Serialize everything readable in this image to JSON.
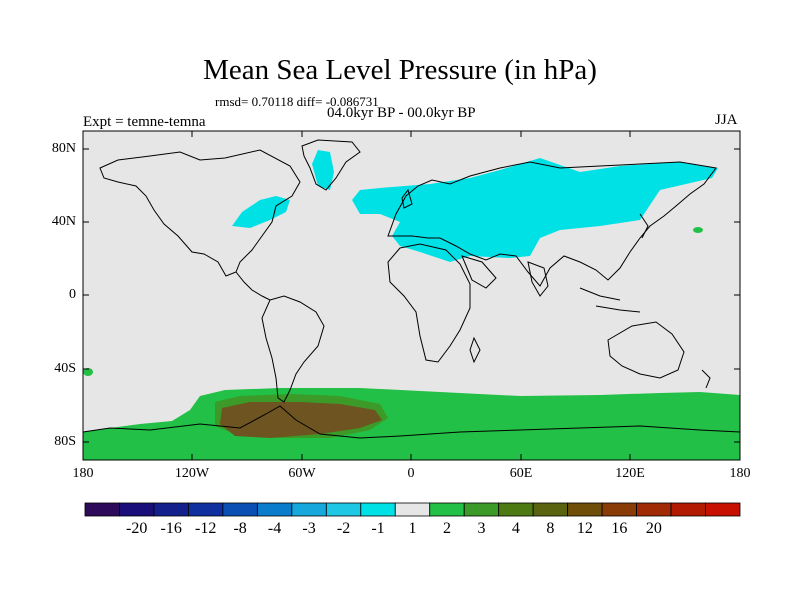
{
  "title": "Mean Sea Level Pressure (in hPa)",
  "stats": "rmsd= 0.70118 diff= -0.086731",
  "period": "04.0kyr BP - 00.0kyr BP",
  "experiment": "Expt = temne-temna",
  "season": "JJA",
  "lat_labels": [
    "80N",
    "40N",
    "0",
    "40S",
    "80S"
  ],
  "lon_labels": [
    "180",
    "120W",
    "60W",
    "0",
    "60E",
    "120E",
    "180"
  ],
  "colorbar": {
    "labels": [
      "-20",
      "-16",
      "-12",
      "-8",
      "-4",
      "-3",
      "-2",
      "-1",
      "1",
      "2",
      "3",
      "4",
      "8",
      "12",
      "16",
      "20"
    ],
    "colors": [
      "#2d0a5a",
      "#1a0f7a",
      "#14208c",
      "#1030a0",
      "#0a4fb4",
      "#0a7ccc",
      "#16a8dc",
      "#1ec8e4",
      "#00e1e6",
      "#e6e6e6",
      "#22c046",
      "#3c9a28",
      "#4e7a14",
      "#5a6410",
      "#6e4e08",
      "#8a3c06",
      "#a02a04",
      "#b21a02",
      "#c81000"
    ]
  },
  "field_colors": {
    "background": "#e6e6e6",
    "negative_1": "#00e1e6",
    "positive_1": "#22c046",
    "positive_2": "#3c9a28",
    "positive_3": "#6a5a1a"
  }
}
